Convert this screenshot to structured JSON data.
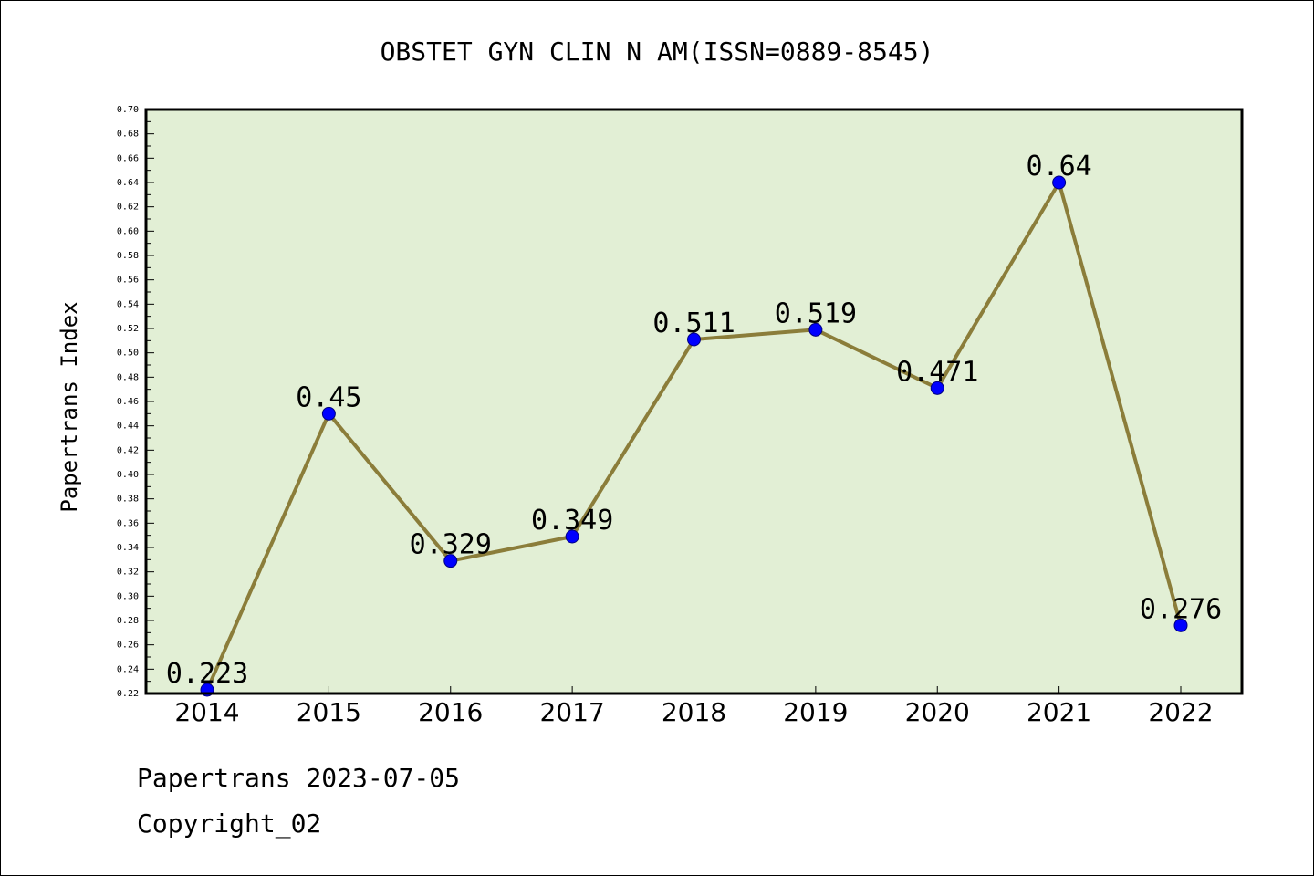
{
  "chart_data": {
    "type": "line",
    "title": "OBSTET GYN CLIN N AM(ISSN=0889-8545)",
    "xlabel": "",
    "ylabel": "Papertrans Index",
    "categories": [
      "2014",
      "2015",
      "2016",
      "2017",
      "2018",
      "2019",
      "2020",
      "2021",
      "2022"
    ],
    "series": [
      {
        "values": [
          0.223,
          0.45,
          0.329,
          0.349,
          0.511,
          0.519,
          0.471,
          0.64,
          0.276
        ],
        "labels": [
          "0.223",
          "0.45",
          "0.329",
          "0.349",
          "0.511",
          "0.519",
          "0.471",
          "0.64",
          "0.276"
        ]
      }
    ],
    "ylim": [
      0.22,
      0.7
    ],
    "yticks": [
      "0.22",
      "0.24",
      "0.26",
      "0.28",
      "0.30",
      "0.32",
      "0.34",
      "0.36",
      "0.38",
      "0.40",
      "0.42",
      "0.44",
      "0.46",
      "0.48",
      "0.50",
      "0.52",
      "0.54",
      "0.56",
      "0.58",
      "0.60",
      "0.62",
      "0.64",
      "0.66",
      "0.68",
      "0.70"
    ],
    "grid": false,
    "legend": "none",
    "colors": {
      "plot_background": "#e2efd5",
      "line": "#8b7d3a",
      "marker_fill": "#0000ff",
      "marker_stroke": "#000080",
      "axes": "#000000"
    }
  },
  "footer": {
    "date_text": "Papertrans 2023-07-05",
    "copyright_text": "Copyright_02"
  }
}
